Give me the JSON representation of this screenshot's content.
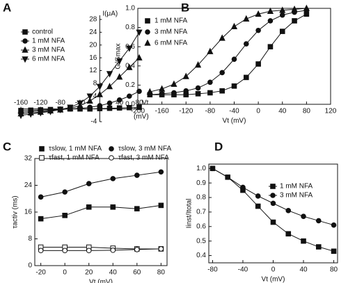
{
  "chart_data": [
    {
      "type": "line",
      "label": "A",
      "ylabel": "I(μA)",
      "xlabel": "Vt",
      "xlabel2": "(mV)",
      "x": [
        -160,
        -140,
        -120,
        -100,
        -80,
        -60,
        -40,
        -20,
        0,
        20,
        40,
        60,
        80
      ],
      "xlim": [
        -160,
        80
      ],
      "xticks": [
        -160,
        -120,
        -80,
        -40,
        40,
        80
      ],
      "ylim": [
        -4,
        28
      ],
      "yticks": [
        -4,
        4,
        8,
        12,
        16,
        20,
        24,
        28
      ],
      "series": [
        {
          "name": "control",
          "marker": "square",
          "color": "#111",
          "values": [
            -0.5,
            -0.4,
            -0.3,
            -0.2,
            -0.1,
            0,
            0,
            0,
            0.1,
            0.2,
            0.3,
            0.4,
            0.5
          ]
        },
        {
          "name": "1 mM NFA",
          "marker": "circle",
          "color": "#111",
          "values": [
            -1,
            -0.8,
            -0.6,
            -0.4,
            -0.2,
            0,
            0.2,
            0.5,
            1,
            1.8,
            2.8,
            4,
            5.5
          ]
        },
        {
          "name": "3 mM NFA",
          "marker": "triangle-up",
          "color": "#111",
          "values": [
            -1.5,
            -1.2,
            -1,
            -0.6,
            -0.3,
            0.2,
            1,
            2.5,
            4.5,
            7,
            10,
            13,
            16
          ]
        },
        {
          "name": "6 mM NFA",
          "marker": "triangle-down",
          "color": "#111",
          "values": [
            -2,
            -1.6,
            -1.2,
            -0.8,
            -0.2,
            0.5,
            1.8,
            4,
            7,
            11,
            15,
            19,
            24
          ]
        }
      ]
    },
    {
      "type": "line",
      "label": "B",
      "ylabel": "G/Gmax",
      "xlabel": "Vt (mV)",
      "x": [
        -180,
        -160,
        -140,
        -120,
        -100,
        -80,
        -60,
        -40,
        -20,
        0,
        20,
        40,
        60,
        80
      ],
      "xlim": [
        -200,
        120
      ],
      "xticks": [
        -200,
        -160,
        -120,
        -80,
        -40,
        0,
        40,
        80,
        120
      ],
      "ylim": [
        0,
        1
      ],
      "yticks": [
        {
          "value": 0,
          "label": "0.0"
        },
        0.2,
        0.4,
        0.6,
        0.8,
        {
          "value": 1,
          "label": "1.0"
        }
      ],
      "series": [
        {
          "name": "1 mM NFA",
          "marker": "square",
          "color": "#111",
          "values": [
            0.1,
            0.1,
            0.1,
            0.1,
            0.11,
            0.12,
            0.14,
            0.19,
            0.28,
            0.42,
            0.6,
            0.76,
            0.87,
            0.94
          ]
        },
        {
          "name": "3 mM NFA",
          "marker": "circle",
          "color": "#111",
          "values": [
            0.1,
            0.11,
            0.12,
            0.14,
            0.17,
            0.23,
            0.33,
            0.47,
            0.63,
            0.77,
            0.87,
            0.93,
            0.96,
            0.98
          ]
        },
        {
          "name": "6 mM NFA",
          "marker": "triangle-up",
          "color": "#111",
          "values": [
            0.13,
            0.16,
            0.21,
            0.29,
            0.41,
            0.55,
            0.69,
            0.81,
            0.89,
            0.94,
            0.97,
            0.98,
            0.99,
            1.0
          ]
        }
      ]
    },
    {
      "type": "line",
      "label": "C",
      "ylabel": "τactiv (ms)",
      "xlabel": "Vt (mV)",
      "x": [
        -20,
        0,
        20,
        40,
        60,
        80
      ],
      "xlim": [
        -25,
        85
      ],
      "xticks": [
        -20,
        0,
        20,
        40,
        60,
        80
      ],
      "ylim": [
        0,
        32
      ],
      "yticks": [
        0,
        8,
        16,
        24,
        32
      ],
      "series": [
        {
          "name": "τslow, 1 mM NFA",
          "marker": "square",
          "color": "#111",
          "values": [
            14,
            15,
            17.5,
            17.5,
            17,
            18
          ]
        },
        {
          "name": "τslow, 3 mM NFA",
          "marker": "circle",
          "color": "#111",
          "values": [
            20.5,
            22,
            24.5,
            26,
            27,
            28
          ]
        },
        {
          "name": "τfast, 1 mM NFA",
          "marker": "square-open",
          "color": "#111",
          "values": [
            5.5,
            5.5,
            5.5,
            5.2,
            5,
            5
          ]
        },
        {
          "name": "τfast, 3 mM NFA",
          "marker": "circle-open",
          "color": "#111",
          "values": [
            4.5,
            4.5,
            4.5,
            4.6,
            4.8,
            5
          ]
        }
      ]
    },
    {
      "type": "line",
      "label": "D",
      "ylabel": "Iinst/Itotal",
      "xlabel": "Vt (mV)",
      "x": [
        -80,
        -60,
        -40,
        -20,
        0,
        20,
        40,
        60,
        80
      ],
      "xlim": [
        -85,
        85
      ],
      "xticks": [
        -80,
        -40,
        0,
        40,
        80
      ],
      "ylim": [
        0.35,
        1.03
      ],
      "yticks": [
        0.4,
        0.5,
        0.6,
        0.7,
        0.8,
        0.9,
        {
          "value": 1,
          "label": "1.0"
        }
      ],
      "series": [
        {
          "name": "1 mM NFA",
          "marker": "square",
          "color": "#111",
          "values": [
            1.0,
            0.94,
            0.85,
            0.74,
            0.63,
            0.55,
            0.5,
            0.46,
            0.43
          ]
        },
        {
          "name": "3 mM NFA",
          "marker": "circle",
          "color": "#111",
          "values": [
            1.0,
            0.94,
            0.87,
            0.81,
            0.76,
            0.71,
            0.67,
            0.64,
            0.61
          ]
        }
      ]
    }
  ]
}
